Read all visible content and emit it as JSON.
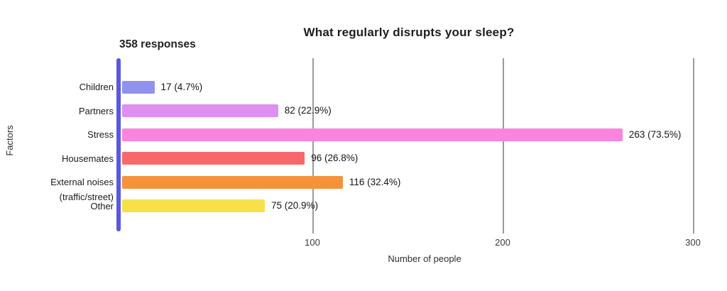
{
  "chart_data": {
    "type": "bar",
    "orientation": "horizontal",
    "title": "What regularly disrupts your sleep?",
    "subtitle": "358 responses",
    "xlabel": "Number of people",
    "ylabel": "Factors",
    "xlim": [
      0,
      300
    ],
    "xticks": [
      100,
      200,
      300
    ],
    "grid": true,
    "legend": false,
    "rows": [
      {
        "category": "Children",
        "category_line2": "",
        "value": 17,
        "label": "17 (4.7%)",
        "color": "#8f93ed"
      },
      {
        "category": "Partners",
        "category_line2": "",
        "value": 82,
        "label": "82 (22.9%)",
        "color": "#de8ff0"
      },
      {
        "category": "Stress",
        "category_line2": "",
        "value": 263,
        "label": "263 (73.5%)",
        "color": "#fb84de"
      },
      {
        "category": "Housemates",
        "category_line2": "",
        "value": 96,
        "label": "96 (26.8%)",
        "color": "#f8686a"
      },
      {
        "category": "External noises",
        "category_line2": "(traffic/street)",
        "value": 116,
        "label": "116 (32.4%)",
        "color": "#f5933a"
      },
      {
        "category": "Other",
        "category_line2": "",
        "value": 75,
        "label": "75 (20.9%)",
        "color": "#f8e049"
      }
    ],
    "colors": {
      "axis_line": "#5b58e0",
      "gridline": "#9b9b9b",
      "title_text": "#1e1e1e"
    }
  }
}
